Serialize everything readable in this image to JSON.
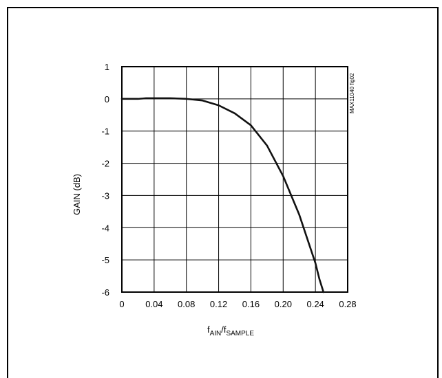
{
  "chart_data": {
    "type": "line",
    "title": "",
    "xlabel": "fAIN/fSAMPLE",
    "xlabel_parts": {
      "main": "f",
      "sub1": "AIN",
      "slash": "/f",
      "sub2": "SAMPLE"
    },
    "ylabel": "GAIN (dB)",
    "figure_id": "MAX11040 fig02",
    "xlim": [
      0,
      0.28
    ],
    "ylim": [
      -6,
      1
    ],
    "grid": true,
    "x_ticks": [
      0,
      0.04,
      0.08,
      0.12,
      0.16,
      0.2,
      0.24,
      0.28
    ],
    "x_tick_labels": [
      "0",
      "0.04",
      "0.08",
      "0.12",
      "0.16",
      "0.20",
      "0.24",
      "0.28"
    ],
    "y_ticks": [
      1,
      0,
      -1,
      -2,
      -3,
      -4,
      -5,
      -6
    ],
    "y_tick_labels": [
      "1",
      "0",
      "-1",
      "-2",
      "-3",
      "-4",
      "-5",
      "-6"
    ],
    "line_color": "#111111",
    "series": [
      {
        "x": [
          0,
          0.02,
          0.03,
          0.04,
          0.06,
          0.08,
          0.1,
          0.12,
          0.14,
          0.16,
          0.18,
          0.2,
          0.22,
          0.24,
          0.245,
          0.25
        ],
        "y": [
          0,
          0,
          0.02,
          0.02,
          0.02,
          0,
          -0.05,
          -0.2,
          -0.45,
          -0.82,
          -1.45,
          -2.4,
          -3.6,
          -5.1,
          -5.6,
          -6
        ]
      }
    ]
  }
}
